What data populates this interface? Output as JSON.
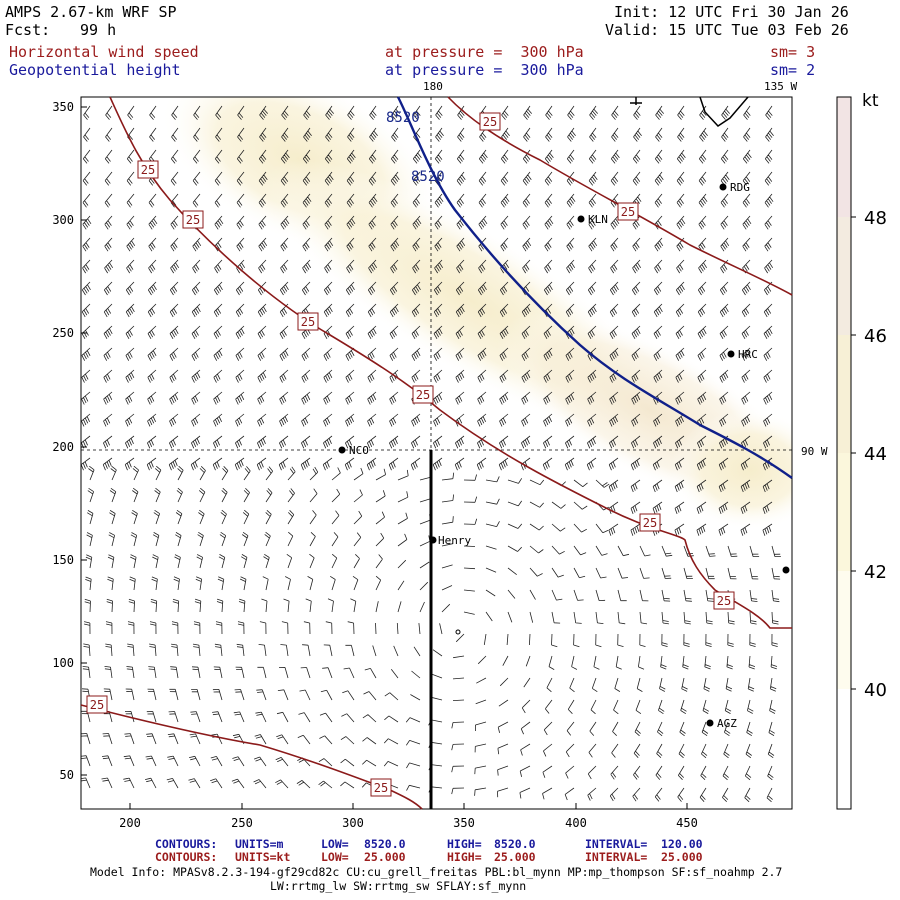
{
  "header": {
    "model_title": "AMPS 2.67-km WRF SP",
    "forecast_label": "Fcst:",
    "forecast_hours": "99 h",
    "init_time": "Init: 12 UTC Fri 30 Jan 26",
    "valid_time": "Valid: 15 UTC Tue 03 Feb 26"
  },
  "fields": [
    {
      "name": "Horizontal wind speed",
      "level": "at pressure =  300 hPa",
      "smooth": "sm= 3",
      "color": "#9b1c1c"
    },
    {
      "name": "Geopotential height",
      "level": "at pressure =  300 hPa",
      "smooth": "sm= 2",
      "color": "#1a1a9c"
    }
  ],
  "map": {
    "x_ticks": [
      "200",
      "250",
      "300",
      "350",
      "400",
      "450"
    ],
    "y_ticks": [
      "350",
      "300",
      "250",
      "200",
      "150",
      "100",
      "50"
    ],
    "meridian_labels": [
      "180",
      "135 W",
      "90 W"
    ],
    "stations": [
      "RDG",
      "KLN",
      "HRC",
      "NCO",
      "Henry",
      "AGZ"
    ],
    "height_contour_labels": [
      "8520",
      "8520"
    ],
    "wind_contour_label": "25"
  },
  "colorbar": {
    "unit": "kt",
    "ticks": [
      "48",
      "46",
      "44",
      "42",
      "40"
    ],
    "colors": [
      "#f2e4e4",
      "#f3ebe0",
      "#f7f0d6",
      "#fbf7dc",
      "#fefcee",
      "#ffffff"
    ]
  },
  "footer": {
    "line1": {
      "label": "CONTOURS:",
      "units": "UNITS=m",
      "low": "LOW=",
      "low_val": "8520.0",
      "high": "HIGH=",
      "high_val": "8520.0",
      "interval": "INTERVAL=",
      "interval_val": "120.00"
    },
    "line2": {
      "label": "CONTOURS:",
      "units": "UNITS=kt",
      "low": "LOW=",
      "low_val": "25.000",
      "high": "HIGH=",
      "high_val": "25.000",
      "interval": "INTERVAL=",
      "interval_val": "25.000"
    },
    "model_info": "Model Info: MPASv8.2.3-194-gf29cd82c CU:cu_grell_freitas PBL:bl_mynn MP:mp_thompson SF:sf_noahmp 2.7",
    "model_info_2": "LW:rrtmg_lw SW:rrtmg_sw SFLAY:sf_mynn"
  }
}
